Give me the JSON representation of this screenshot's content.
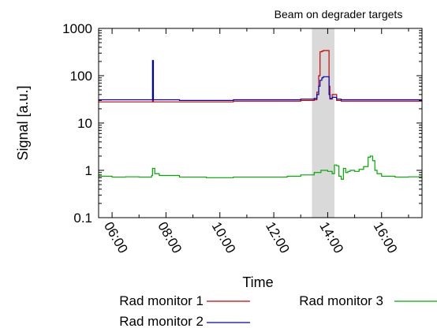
{
  "chart_data": {
    "type": "line",
    "title": "",
    "xlabel": "Time",
    "ylabel": "Signal [a.u.]",
    "yscale": "log",
    "ylim": [
      0.1,
      1000
    ],
    "xlim": [
      "05:30",
      "17:30"
    ],
    "y_ticks": [
      "0.1",
      "1",
      "10",
      "100",
      "1000"
    ],
    "x_ticks": [
      "06:00",
      "08:00",
      "10:00",
      "12:00",
      "14:00",
      "16:00"
    ],
    "grid": false,
    "legend_position": "bottom",
    "shaded_region": {
      "label": "Beam on degrader targets",
      "start": "13:25",
      "end": "14:15"
    },
    "colors": {
      "rad1": "#cc0000",
      "rad2": "#0000b4",
      "rad3": "#00aa00",
      "shade": "#d9d9d9"
    },
    "series": [
      {
        "name": "Rad monitor 1",
        "color_key": "rad1",
        "x": [
          "05:30",
          "06:30",
          "07:28",
          "07:30",
          "07:32",
          "08:30",
          "09:30",
          "10:30",
          "11:30",
          "12:30",
          "13:00",
          "13:20",
          "13:30",
          "13:36",
          "13:40",
          "13:43",
          "13:47",
          "13:50",
          "13:55",
          "14:00",
          "14:03",
          "14:05",
          "14:10",
          "14:20",
          "14:30",
          "15:00",
          "16:00",
          "17:00",
          "17:30"
        ],
        "y": [
          28,
          28,
          28,
          30,
          28,
          28,
          28,
          29,
          29,
          29,
          30,
          30,
          31,
          45,
          100,
          320,
          330,
          340,
          340,
          340,
          60,
          32,
          40,
          30,
          29,
          29,
          29,
          29,
          29
        ]
      },
      {
        "name": "Rad monitor 2",
        "color_key": "rad2",
        "x": [
          "05:30",
          "06:30",
          "07:28",
          "07:30",
          "07:32",
          "08:30",
          "09:30",
          "10:30",
          "11:30",
          "12:30",
          "13:00",
          "13:20",
          "13:30",
          "13:36",
          "13:40",
          "13:43",
          "13:47",
          "13:50",
          "13:55",
          "14:00",
          "14:03",
          "14:05",
          "14:10",
          "14:20",
          "14:30",
          "15:00",
          "16:00",
          "17:00",
          "17:30"
        ],
        "y": [
          31,
          31,
          31,
          210,
          31,
          30,
          30,
          31,
          31,
          31,
          32,
          32,
          33,
          40,
          60,
          80,
          90,
          95,
          95,
          95,
          40,
          33,
          35,
          32,
          31,
          31,
          31,
          31,
          31
        ]
      },
      {
        "name": "Rad monitor 3",
        "color_key": "rad3",
        "x": [
          "05:30",
          "06:00",
          "06:30",
          "07:00",
          "07:28",
          "07:30",
          "07:35",
          "07:45",
          "08:30",
          "09:30",
          "10:30",
          "11:30",
          "12:30",
          "13:00",
          "13:30",
          "13:45",
          "14:00",
          "14:10",
          "14:15",
          "14:20",
          "14:25",
          "14:30",
          "14:35",
          "14:40",
          "14:45",
          "14:50",
          "15:00",
          "15:10",
          "15:20",
          "15:30",
          "15:35",
          "15:40",
          "15:45",
          "15:50",
          "16:00",
          "16:30",
          "17:00",
          "17:30"
        ],
        "y": [
          0.75,
          0.72,
          0.73,
          0.72,
          0.78,
          1.1,
          0.85,
          0.78,
          0.72,
          0.7,
          0.72,
          0.72,
          0.75,
          0.8,
          0.9,
          1.0,
          0.95,
          0.85,
          1.3,
          1.25,
          0.75,
          0.65,
          1.1,
          0.9,
          0.95,
          1.0,
          0.95,
          1.05,
          1.2,
          1.9,
          2.0,
          1.6,
          1.0,
          0.85,
          0.75,
          0.72,
          0.73,
          0.72
        ]
      }
    ]
  }
}
